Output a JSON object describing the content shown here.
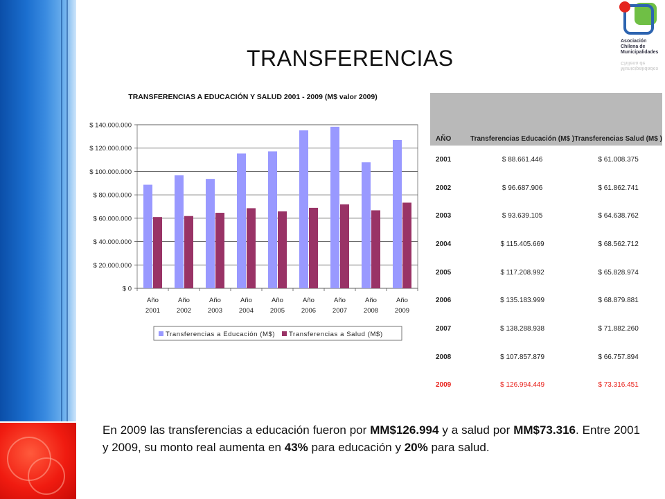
{
  "slide_title": "TRANSFERENCIAS",
  "logo": {
    "line1": "Asociación",
    "line2": "Chilena de",
    "line3": "Municipalidades",
    "brand_colors": [
      "#2d64b0",
      "#6fbf45",
      "#e5261f"
    ]
  },
  "table": {
    "headers": {
      "year": "AÑO",
      "edu": "Transferencias Educación (M$ )",
      "salud": "Transferencias Salud (M$ )"
    },
    "rows": [
      {
        "year": "2001",
        "edu": "$ 88.661.446",
        "salud": "$ 61.008.375"
      },
      {
        "year": "2002",
        "edu": "$ 96.687.906",
        "salud": "$ 61.862.741"
      },
      {
        "year": "2003",
        "edu": "$ 93.639.105",
        "salud": "$ 64.638.762"
      },
      {
        "year": "2004",
        "edu": "$ 115.405.669",
        "salud": "$ 68.562.712"
      },
      {
        "year": "2005",
        "edu": "$ 117.208.992",
        "salud": "$ 65.828.974"
      },
      {
        "year": "2006",
        "edu": "$ 135.183.999",
        "salud": "$ 68.879.881"
      },
      {
        "year": "2007",
        "edu": "$ 138.288.938",
        "salud": "$ 71.882.260"
      },
      {
        "year": "2008",
        "edu": "$ 107.857.879",
        "salud": "$ 66.757.894"
      },
      {
        "year": "2009",
        "edu": "$ 126.994.449",
        "salud": "$ 73.316.451"
      }
    ],
    "highlight_color": "#e8201a"
  },
  "summary": {
    "p1": "En 2009 las transferencias a educación fueron por ",
    "b1": "MM$126.994",
    "p2": " y a salud por ",
    "b2": "MM$73.316",
    "p3": ". Entre 2001 y 2009, su monto real aumenta en ",
    "b3": "43%",
    "p4": " para educación y ",
    "b4": "20%",
    "p5": " para salud."
  },
  "chart_data": {
    "type": "bar",
    "title": "TRANSFERENCIAS A EDUCACIÓN Y SALUD 2001 - 2009 (M$ valor 2009)",
    "categories": [
      [
        "Año",
        "2001"
      ],
      [
        "Año",
        "2002"
      ],
      [
        "Año",
        "2003"
      ],
      [
        "Año",
        "2004"
      ],
      [
        "Año",
        "2005"
      ],
      [
        "Año",
        "2006"
      ],
      [
        "Año",
        "2007"
      ],
      [
        "Año",
        "2008"
      ],
      [
        "Año",
        "2009"
      ]
    ],
    "series": [
      {
        "name": "Transferencias a Educación (M$)",
        "color": "#9999ff",
        "values": [
          88661446,
          96687906,
          93639105,
          115405669,
          117208992,
          135183999,
          138288938,
          107857879,
          126994449
        ]
      },
      {
        "name": "Transferencias a Salud (M$)",
        "color": "#993366",
        "values": [
          61008375,
          61862741,
          64638762,
          68562712,
          65828974,
          68879881,
          71882260,
          66757894,
          73316451
        ]
      }
    ],
    "ylim": [
      0,
      140000000
    ],
    "yticks": [
      0,
      20000000,
      40000000,
      60000000,
      80000000,
      100000000,
      120000000,
      140000000
    ],
    "ytick_labels": [
      "$ 0",
      "$ 20.000.000",
      "$ 40.000.000",
      "$ 60.000.000",
      "$ 80.000.000",
      "$ 100.000.000",
      "$ 120.000.000",
      "$ 140.000.000"
    ],
    "grid": true,
    "legend": "bottom"
  }
}
